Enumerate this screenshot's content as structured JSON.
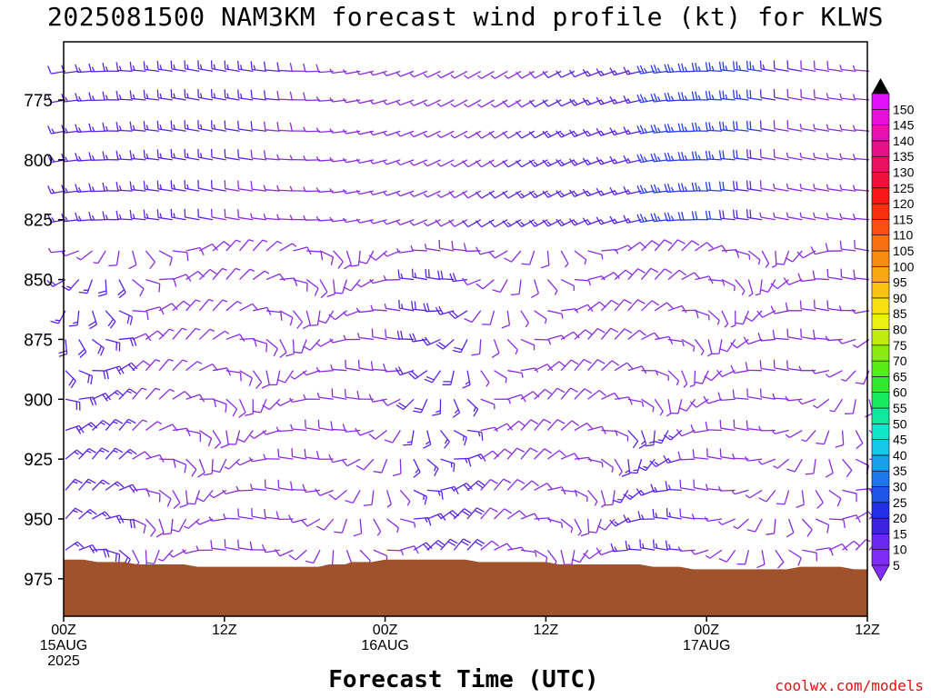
{
  "title": "2025081500 NAM3KM forecast wind profile (kt) for KLWS",
  "credit": "coolwx.com/models",
  "chart_data": {
    "type": "wind-barb-profile",
    "title": "2025081500 NAM3KM forecast wind profile (kt) for KLWS",
    "xlabel": "Forecast Time (UTC)",
    "ylabel": "",
    "x_range_hours": [
      0,
      60
    ],
    "y_range_hpa": [
      978,
      756
    ],
    "y_ticks": [
      "775",
      "800",
      "825",
      "850",
      "875",
      "900",
      "925",
      "950",
      "975"
    ],
    "x_ticks": [
      {
        "hour": 0,
        "lines": [
          "00Z",
          "15AUG",
          "2025"
        ]
      },
      {
        "hour": 12,
        "lines": [
          "12Z"
        ]
      },
      {
        "hour": 24,
        "lines": [
          "00Z",
          "16AUG"
        ]
      },
      {
        "hour": 36,
        "lines": [
          "12Z"
        ]
      },
      {
        "hour": 48,
        "lines": [
          "00Z",
          "17AUG"
        ]
      },
      {
        "hour": 60,
        "lines": [
          "12Z"
        ]
      }
    ],
    "barb_hours_step": 1,
    "barb_levels_hpa": [
      763,
      775,
      788,
      800,
      813,
      825,
      838,
      850,
      863,
      875,
      888,
      900,
      913,
      925,
      938,
      950,
      963,
      975
    ],
    "terrain_surface_hpa": [
      [
        0,
        967
      ],
      [
        1.5,
        967
      ],
      [
        2.5,
        968
      ],
      [
        4.5,
        968
      ],
      [
        5.5,
        969
      ],
      [
        9,
        969
      ],
      [
        10,
        970
      ],
      [
        19,
        970
      ],
      [
        20,
        969
      ],
      [
        21,
        969
      ],
      [
        21.5,
        968
      ],
      [
        23,
        968
      ],
      [
        24,
        967
      ],
      [
        30,
        967
      ],
      [
        31,
        968
      ],
      [
        36,
        968
      ],
      [
        37,
        969
      ],
      [
        43,
        969
      ],
      [
        44,
        970
      ],
      [
        46,
        970
      ],
      [
        47,
        971
      ],
      [
        54,
        971
      ],
      [
        55,
        970
      ],
      [
        58,
        970
      ],
      [
        59,
        971
      ],
      [
        60,
        971
      ]
    ],
    "colorbar": {
      "unit": "kt",
      "labels": [
        "5",
        "10",
        "15",
        "20",
        "25",
        "30",
        "35",
        "40",
        "45",
        "50",
        "55",
        "60",
        "65",
        "70",
        "75",
        "80",
        "85",
        "90",
        "95",
        "100",
        "105",
        "110",
        "115",
        "120",
        "125",
        "130",
        "135",
        "140",
        "145",
        "150"
      ],
      "colors": [
        "#7f2cf5",
        "#6a28f2",
        "#3d21e0",
        "#2330e8",
        "#1f55e8",
        "#1a78ea",
        "#1aa0ea",
        "#18c8ea",
        "#10e6c8",
        "#10e8a0",
        "#18ea60",
        "#30ea30",
        "#5aea18",
        "#8aea10",
        "#c0ea10",
        "#eaf010",
        "#f8e010",
        "#f8c410",
        "#f8a810",
        "#f88c10",
        "#f87010",
        "#f85010",
        "#f83010",
        "#f81818",
        "#f0103a",
        "#e81060",
        "#e81088",
        "#e810b0",
        "#e810d8",
        "#e010f8"
      ]
    },
    "barb_color_by_speed": {
      "lt10": "#8a2be2",
      "10to20": "#5a22e6",
      "20to30": "#2a3de8"
    }
  }
}
